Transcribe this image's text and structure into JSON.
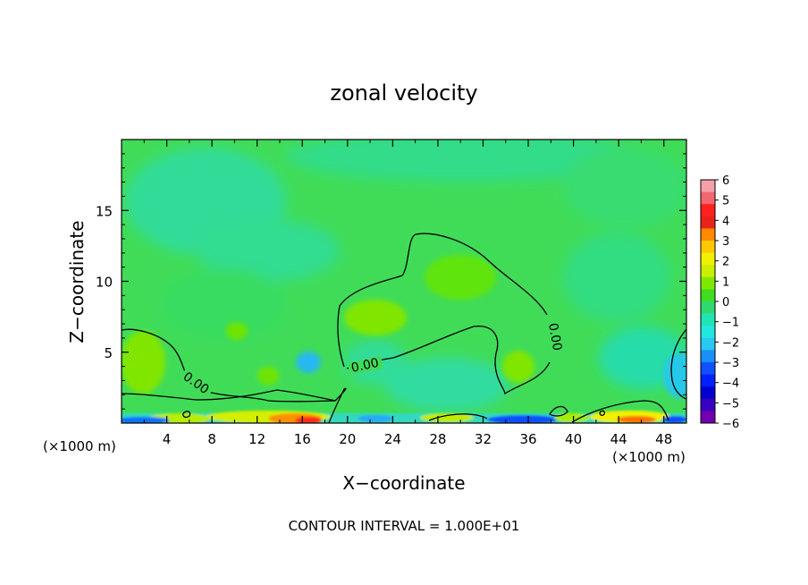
{
  "chart_data": {
    "type": "heatmap",
    "title": "zonal velocity",
    "xlabel": "X−coordinate",
    "ylabel": "Z−coordinate",
    "x_unit": "(×1000 m)",
    "x_unit_right": "(×1000 m)",
    "xlim": [
      0,
      50
    ],
    "ylim": [
      0,
      20
    ],
    "x_ticks": [
      4,
      8,
      12,
      16,
      20,
      24,
      28,
      32,
      36,
      40,
      44,
      48
    ],
    "y_ticks": [
      5,
      10,
      15
    ],
    "colorbar": {
      "ticks": [
        6,
        5,
        4,
        3,
        2,
        1,
        0,
        -1,
        -2,
        -3,
        -4,
        -5,
        -6
      ],
      "tick_labels": [
        "6",
        "5",
        "4",
        "3",
        "2",
        "1",
        "0",
        "−1",
        "−2",
        "−3",
        "−4",
        "−5",
        "−6"
      ],
      "colors": [
        "#f4a0a8",
        "#f26670",
        "#ff2020",
        "#e8241a",
        "#ff8a00",
        "#ffc800",
        "#f0f000",
        "#c8ee00",
        "#7fe800",
        "#40dc20",
        "#30d870",
        "#20e4b4",
        "#20e8e0",
        "#28c8f0",
        "#1890f8",
        "#1050ff",
        "#0020ff",
        "#0000d0",
        "#3800c0",
        "#7000b0"
      ]
    },
    "contour_labels": [
      "0.00",
      "0.00",
      "0.00",
      "0.00"
    ],
    "footnote": "CONTOUR INTERVAL = 1.000E+01"
  }
}
